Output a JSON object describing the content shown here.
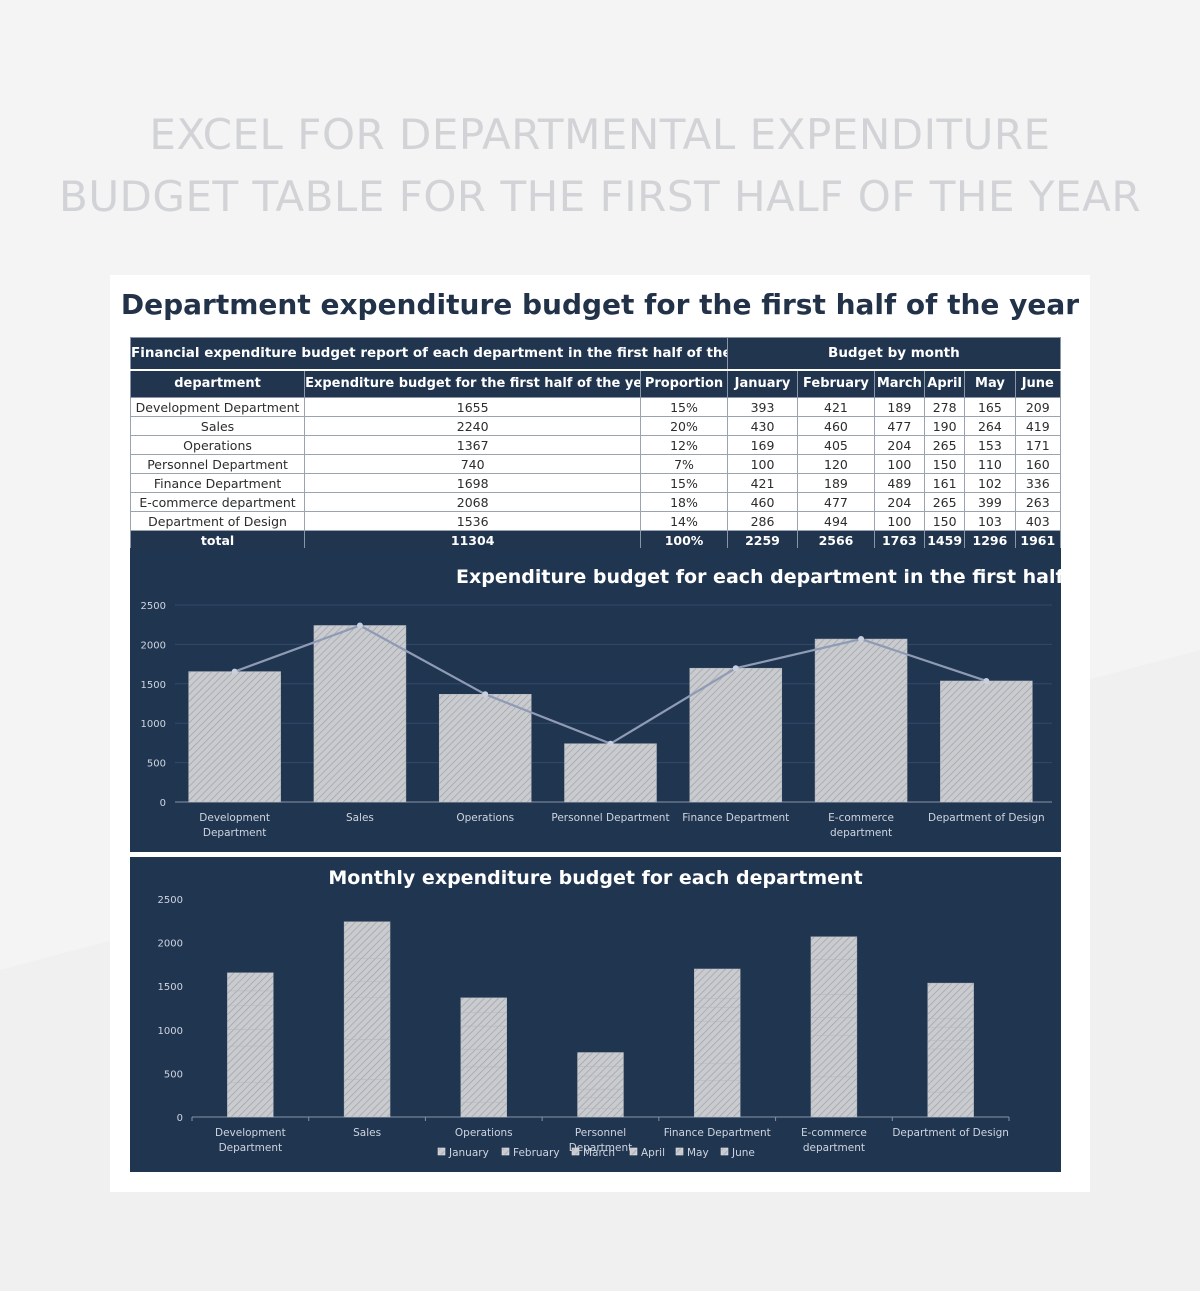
{
  "hero": {
    "line1": "EXCEL FOR DEPARTMENTAL EXPENDITURE",
    "line2": "BUDGET TABLE FOR THE FIRST HALF OF THE YEAR"
  },
  "sheet": {
    "title": "Department expenditure budget for the first half of the year"
  },
  "table": {
    "report_header": "Financial expenditure budget report of each department in the first half of the year",
    "month_header": "Budget by month",
    "columns": [
      "department",
      "Expenditure budget for the first half of the year",
      "Proportion",
      "January",
      "February",
      "March",
      "April",
      "May",
      "June"
    ],
    "rows": [
      [
        "Development Department",
        "1655",
        "15%",
        "393",
        "421",
        "189",
        "278",
        "165",
        "209"
      ],
      [
        "Sales",
        "2240",
        "20%",
        "430",
        "460",
        "477",
        "190",
        "264",
        "419"
      ],
      [
        "Operations",
        "1367",
        "12%",
        "169",
        "405",
        "204",
        "265",
        "153",
        "171"
      ],
      [
        "Personnel Department",
        "740",
        "7%",
        "100",
        "120",
        "100",
        "150",
        "110",
        "160"
      ],
      [
        "Finance Department",
        "1698",
        "15%",
        "421",
        "189",
        "489",
        "161",
        "102",
        "336"
      ],
      [
        "E-commerce department",
        "2068",
        "18%",
        "460",
        "477",
        "204",
        "265",
        "399",
        "263"
      ],
      [
        "Department of Design",
        "1536",
        "14%",
        "286",
        "494",
        "100",
        "150",
        "103",
        "403"
      ]
    ],
    "total": [
      "total",
      "11304",
      "100%",
      "2259",
      "2566",
      "1763",
      "1459",
      "1296",
      "1961"
    ]
  },
  "chart_data": [
    {
      "type": "bar",
      "title": "Expenditure budget for each department in the first half of the yea",
      "categories": [
        "Development Department",
        "Sales",
        "Operations",
        "Personnel Department",
        "Finance Department",
        "E-commerce department",
        "Department of Design"
      ],
      "values": [
        1655,
        2240,
        1367,
        740,
        1698,
        2068,
        1536
      ],
      "overlay_line": [
        1655,
        2240,
        1367,
        740,
        1698,
        2068,
        1536
      ],
      "ylim": [
        0,
        2500
      ],
      "yticks": [
        "0",
        "500",
        "1000",
        "1500",
        "2000",
        "2500"
      ],
      "xtick_labels": [
        [
          "Development",
          "Department"
        ],
        [
          "Sales"
        ],
        [
          "Operations"
        ],
        [
          "Personnel Department"
        ],
        [
          "Finance Department"
        ],
        [
          "E-commerce",
          "department"
        ],
        [
          "Department of Design"
        ]
      ],
      "grid": true
    },
    {
      "type": "bar",
      "stacked": true,
      "title": "Monthly expenditure budget for each department",
      "categories": [
        "Development Department",
        "Sales",
        "Operations",
        "Personnel Department",
        "Finance Department",
        "E-commerce department",
        "Department of Design"
      ],
      "series": [
        {
          "name": "January",
          "values": [
            393,
            430,
            169,
            100,
            421,
            460,
            286
          ]
        },
        {
          "name": "February",
          "values": [
            421,
            460,
            405,
            120,
            189,
            477,
            494
          ]
        },
        {
          "name": "March",
          "values": [
            189,
            477,
            204,
            100,
            489,
            204,
            100
          ]
        },
        {
          "name": "April",
          "values": [
            278,
            190,
            265,
            150,
            161,
            265,
            150
          ]
        },
        {
          "name": "May",
          "values": [
            165,
            264,
            153,
            110,
            102,
            399,
            103
          ]
        },
        {
          "name": "June",
          "values": [
            209,
            419,
            171,
            160,
            336,
            263,
            403
          ]
        }
      ],
      "ylim": [
        0,
        2500
      ],
      "yticks": [
        "0",
        "500",
        "1000",
        "1500",
        "2000",
        "2500"
      ],
      "xtick_labels": [
        [
          "Development",
          "Department"
        ],
        [
          "Sales"
        ],
        [
          "Operations"
        ],
        [
          "Personnel",
          "Department"
        ],
        [
          "Finance Department"
        ],
        [
          "E-commerce",
          "department"
        ],
        [
          "Department of Design"
        ]
      ],
      "legend": "bottom",
      "grid": false
    }
  ],
  "colors": {
    "navy": "#21354f",
    "panel": "#203550",
    "bar": "#c9cbcf",
    "line": "#8f9bb5"
  }
}
